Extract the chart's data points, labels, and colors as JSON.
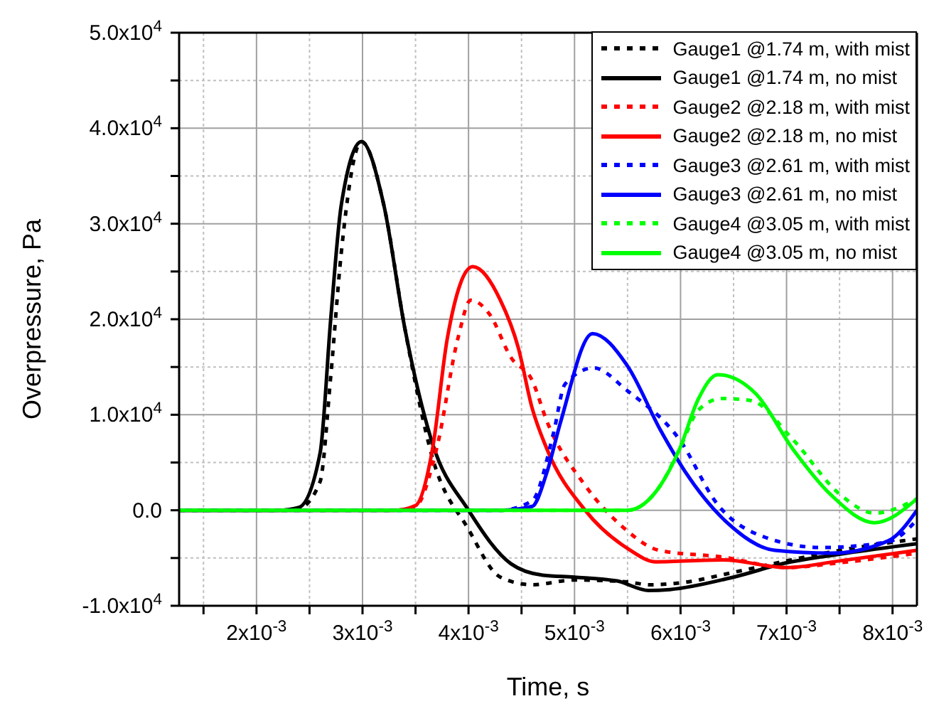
{
  "chart_data": {
    "type": "line",
    "xlabel": "Time, s",
    "ylabel": "Overpressure, Pa",
    "xlim": [
      0.00127,
      0.00823
    ],
    "ylim": [
      -10000,
      50000
    ],
    "xticks": [
      {
        "value": 0.0015,
        "label": null
      },
      {
        "value": 0.002,
        "label": "2x10$^{-3}$"
      },
      {
        "value": 0.0025,
        "label": null
      },
      {
        "value": 0.003,
        "label": "3x10$^{-3}$"
      },
      {
        "value": 0.0035,
        "label": null
      },
      {
        "value": 0.004,
        "label": "4x10$^{-3}$"
      },
      {
        "value": 0.0045,
        "label": null
      },
      {
        "value": 0.005,
        "label": "5x10$^{-3}$"
      },
      {
        "value": 0.0055,
        "label": null
      },
      {
        "value": 0.006,
        "label": "6x10$^{-3}$"
      },
      {
        "value": 0.0065,
        "label": null
      },
      {
        "value": 0.007,
        "label": "7x10$^{-3}$"
      },
      {
        "value": 0.0075,
        "label": null
      },
      {
        "value": 0.008,
        "label": "8x10$^{-3}$"
      }
    ],
    "yticks": [
      {
        "value": -10000,
        "label": "-1.0x10$^{4}$"
      },
      {
        "value": -5000,
        "label": null
      },
      {
        "value": 0,
        "label": "0.0"
      },
      {
        "value": 5000,
        "label": null
      },
      {
        "value": 10000,
        "label": "1.0x10$^{4}$"
      },
      {
        "value": 15000,
        "label": null
      },
      {
        "value": 20000,
        "label": "2.0x10$^{4}$"
      },
      {
        "value": 25000,
        "label": null
      },
      {
        "value": 30000,
        "label": "3.0x10$^{4}$"
      },
      {
        "value": 35000,
        "label": null
      },
      {
        "value": 40000,
        "label": "4.0x10$^{4}$"
      },
      {
        "value": 45000,
        "label": null
      },
      {
        "value": 50000,
        "label": "5.0x10$^{4}$"
      }
    ],
    "grid": true,
    "legend": "top right",
    "marker": "none",
    "series": [
      {
        "name": "Gauge1 @1.74 m, with mist",
        "color": "#000000",
        "line_style": "dotted",
        "x": [
          0.00127,
          0.0022,
          0.0024,
          0.0026,
          0.0027,
          0.0028,
          0.00299,
          0.0032,
          0.0034,
          0.00366,
          0.004,
          0.0043,
          0.0046,
          0.005,
          0.0055,
          0.0057,
          0.006,
          0.0065,
          0.007,
          0.0075,
          0.00823
        ],
        "values": [
          0,
          0,
          200,
          3000,
          14000,
          27000,
          38600,
          32000,
          19000,
          5500,
          -2000,
          -7000,
          -7800,
          -7300,
          -7500,
          -7800,
          -7600,
          -6500,
          -5300,
          -4200,
          -3000
        ]
      },
      {
        "name": "Gauge1 @1.74 m, no mist",
        "color": "#000000",
        "line_style": "solid",
        "x": [
          0.00127,
          0.0022,
          0.0024,
          0.0026,
          0.0027,
          0.0028,
          0.00299,
          0.0032,
          0.0034,
          0.00366,
          0.004,
          0.0044,
          0.0047,
          0.005,
          0.0054,
          0.0057,
          0.0059,
          0.0065,
          0.007,
          0.0075,
          0.00823
        ],
        "values": [
          0,
          0,
          300,
          6000,
          20000,
          32000,
          38600,
          32000,
          19000,
          7000,
          0,
          -5600,
          -6800,
          -7000,
          -7400,
          -8400,
          -8300,
          -7000,
          -5500,
          -4600,
          -3500
        ]
      },
      {
        "name": "Gauge2 @2.18 m, with mist",
        "color": "#ff0000",
        "line_style": "dotted",
        "x": [
          0.00127,
          0.0033,
          0.0035,
          0.0037,
          0.0039,
          0.00402,
          0.0042,
          0.0044,
          0.0046,
          0.00474,
          0.0051,
          0.00545,
          0.0058,
          0.0064,
          0.007,
          0.0075,
          0.00823
        ],
        "values": [
          0,
          0,
          400,
          6500,
          18000,
          22000,
          20500,
          16000,
          13600,
          9300,
          2600,
          -1700,
          -4200,
          -4900,
          -6000,
          -5500,
          -4500
        ]
      },
      {
        "name": "Gauge2 @2.18 m, no mist",
        "color": "#ff0000",
        "line_style": "solid",
        "x": [
          0.00127,
          0.0033,
          0.0035,
          0.00366,
          0.0038,
          0.00404,
          0.0043,
          0.00447,
          0.0046,
          0.00474,
          0.0051,
          0.0055,
          0.00577,
          0.0064,
          0.007,
          0.0075,
          0.00823
        ],
        "values": [
          0,
          0,
          500,
          6400,
          18000,
          25500,
          22000,
          17000,
          10700,
          6400,
          0,
          -4000,
          -5400,
          -5200,
          -6000,
          -5300,
          -4200
        ]
      },
      {
        "name": "Gauge3 @2.61 m, with mist",
        "color": "#0000ff",
        "line_style": "dotted",
        "x": [
          0.00127,
          0.0043,
          0.0046,
          0.0048,
          0.00491,
          0.00518,
          0.0055,
          0.00599,
          0.00635,
          0.00679,
          0.00733,
          0.00796,
          0.00823
        ],
        "values": [
          0,
          0,
          1000,
          8000,
          13200,
          14900,
          12500,
          7400,
          600,
          -2800,
          -3900,
          -3300,
          -1000
        ]
      },
      {
        "name": "Gauge3 @2.61 m, no mist",
        "color": "#0000ff",
        "line_style": "solid",
        "x": [
          0.00127,
          0.0043,
          0.0046,
          0.00474,
          0.00487,
          0.00517,
          0.0055,
          0.00581,
          0.00604,
          0.00644,
          0.00689,
          0.00742,
          0.00796,
          0.00823
        ],
        "values": [
          0,
          0,
          400,
          4000,
          9300,
          18500,
          15100,
          8400,
          4100,
          -1300,
          -4200,
          -4500,
          -3200,
          0
        ]
      },
      {
        "name": "Gauge4 @3.05 m, with mist",
        "color": "#00ff00",
        "line_style": "dotted",
        "x": [
          0.00127,
          0.0055,
          0.00581,
          0.00599,
          0.00617,
          0.00639,
          0.00666,
          0.00706,
          0.00751,
          0.00783,
          0.00823
        ],
        "values": [
          0,
          0,
          2600,
          6400,
          10500,
          11700,
          11500,
          7400,
          1600,
          -300,
          1200
        ]
      },
      {
        "name": "Gauge4 @3.05 m, no mist",
        "color": "#00ff00",
        "line_style": "solid",
        "x": [
          0.00127,
          0.0055,
          0.00581,
          0.00599,
          0.00617,
          0.00635,
          0.00671,
          0.00706,
          0.00742,
          0.00783,
          0.00823
        ],
        "values": [
          0,
          0,
          2600,
          6400,
          11700,
          14200,
          12200,
          6400,
          1600,
          -1300,
          1200
        ]
      }
    ]
  }
}
